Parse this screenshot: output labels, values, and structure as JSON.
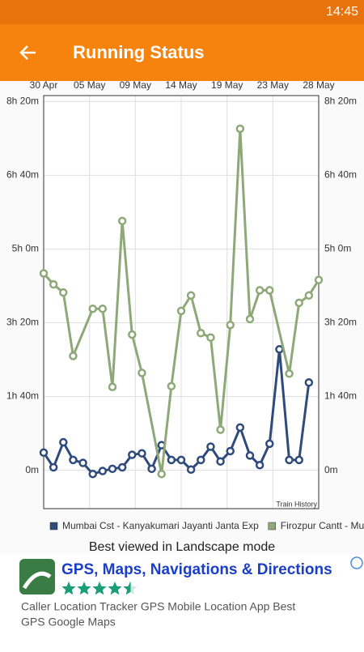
{
  "status_bar": {
    "time": "14:45"
  },
  "app_bar": {
    "title": "Running Status"
  },
  "chart_data": {
    "type": "line",
    "xlim": [
      0,
      28
    ],
    "xticks": [
      {
        "value": 0,
        "label": "30 Apr"
      },
      {
        "value": 4.67,
        "label": "05 May"
      },
      {
        "value": 9.33,
        "label": "09 May"
      },
      {
        "value": 14,
        "label": "14 May"
      },
      {
        "value": 18.67,
        "label": "19 May"
      },
      {
        "value": 23.33,
        "label": "23 May"
      },
      {
        "value": 28,
        "label": "28 May"
      }
    ],
    "ylim": [
      -52,
      508
    ],
    "yticks": [
      {
        "value": 0,
        "label": "0m"
      },
      {
        "value": 100,
        "label": "1h 40m"
      },
      {
        "value": 200,
        "label": "3h 20m"
      },
      {
        "value": 300,
        "label": "5h 0m"
      },
      {
        "value": 400,
        "label": "6h 40m"
      },
      {
        "value": 500,
        "label": "8h 20m"
      }
    ],
    "grid": true,
    "annotation": "Train History",
    "series": [
      {
        "name": "Mumbai Cst - Kanyakumari Jayanti Janta Exp",
        "color": "#2f4b7c",
        "x": [
          0,
          1,
          2,
          3,
          4,
          5,
          6,
          7,
          8,
          9,
          10,
          11,
          12,
          13,
          14,
          15,
          16,
          17,
          18,
          19,
          20,
          21,
          22,
          23,
          24,
          25,
          26,
          27
        ],
        "values": [
          24,
          4,
          38,
          14,
          10,
          -5,
          -1,
          2,
          4,
          21,
          23,
          2,
          34,
          14,
          14,
          1,
          14,
          32,
          12,
          26,
          58,
          20,
          7,
          36,
          164,
          14,
          14,
          119
        ]
      },
      {
        "name": "Firozpur Cantt - Mu",
        "color": "#8ea878",
        "x": [
          0,
          1,
          2,
          3,
          5,
          6,
          7,
          8,
          9,
          10,
          12,
          13,
          14,
          15,
          16,
          17,
          18,
          19,
          20,
          21,
          22,
          23,
          25,
          26,
          27,
          28
        ],
        "values": [
          267,
          252,
          241,
          155,
          219,
          219,
          113,
          338,
          184,
          132,
          -5,
          114,
          216,
          237,
          186,
          180,
          55,
          197,
          463,
          205,
          244,
          244,
          131,
          227,
          237,
          258
        ]
      }
    ]
  },
  "footer_note": "Best viewed in Landscape mode",
  "ad": {
    "title": "GPS, Maps, Navigations & Directions",
    "rating": 4.5,
    "description_lines": [
      "Caller Location Tracker GPS Mobile Location App Best",
      "GPS Google Maps"
    ]
  }
}
